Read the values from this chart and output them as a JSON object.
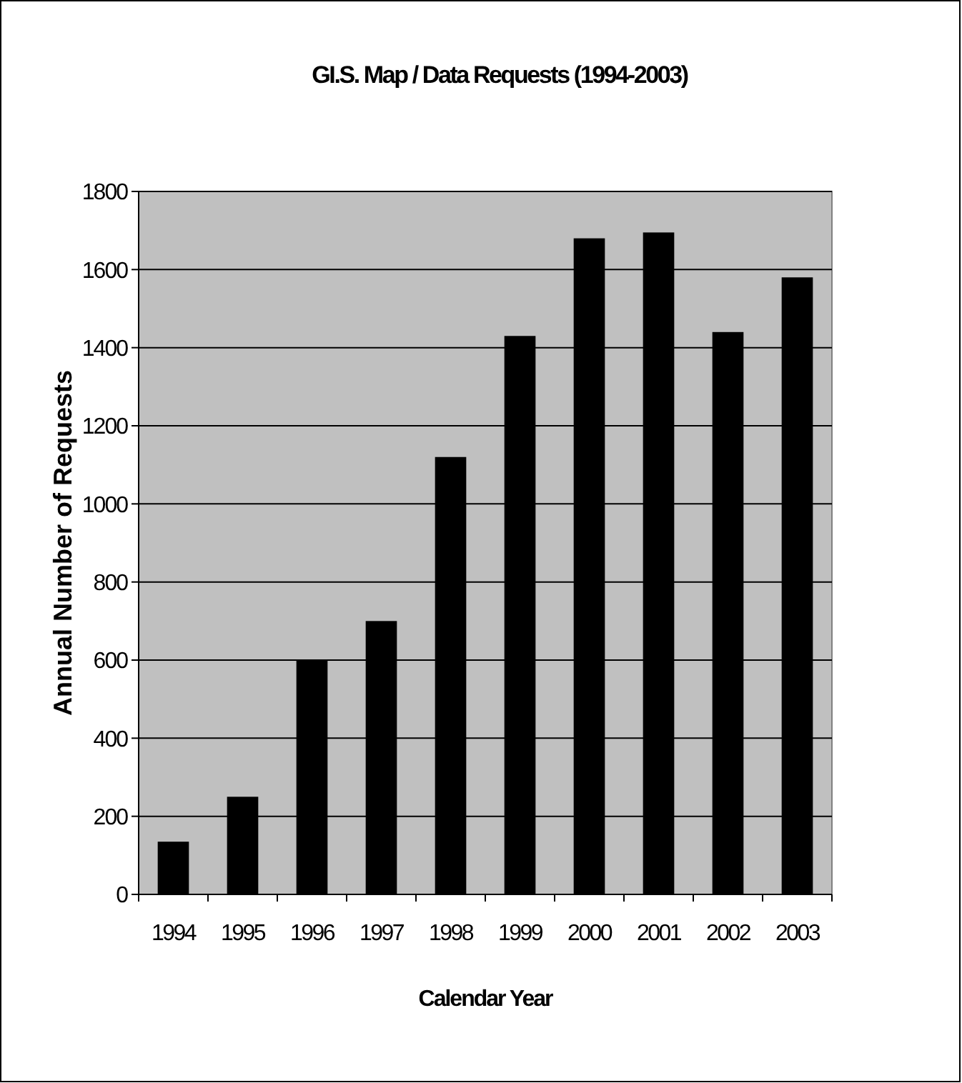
{
  "chart_data": {
    "type": "bar",
    "title": "GI.S. Map / Data Requests (1994-2003)",
    "xlabel": "Calendar Year",
    "ylabel": "Annual Number of Requests",
    "categories": [
      "1994",
      "1995",
      "1996",
      "1997",
      "1998",
      "1999",
      "2000",
      "2001",
      "2002",
      "2003"
    ],
    "values": [
      135,
      250,
      600,
      700,
      1120,
      1430,
      1680,
      1695,
      1440,
      1580
    ],
    "color": "#000000",
    "ylim": [
      0,
      1800
    ],
    "yticks": [
      0,
      200,
      400,
      600,
      800,
      1000,
      1200,
      1400,
      1600,
      1800
    ],
    "grid": "y"
  }
}
